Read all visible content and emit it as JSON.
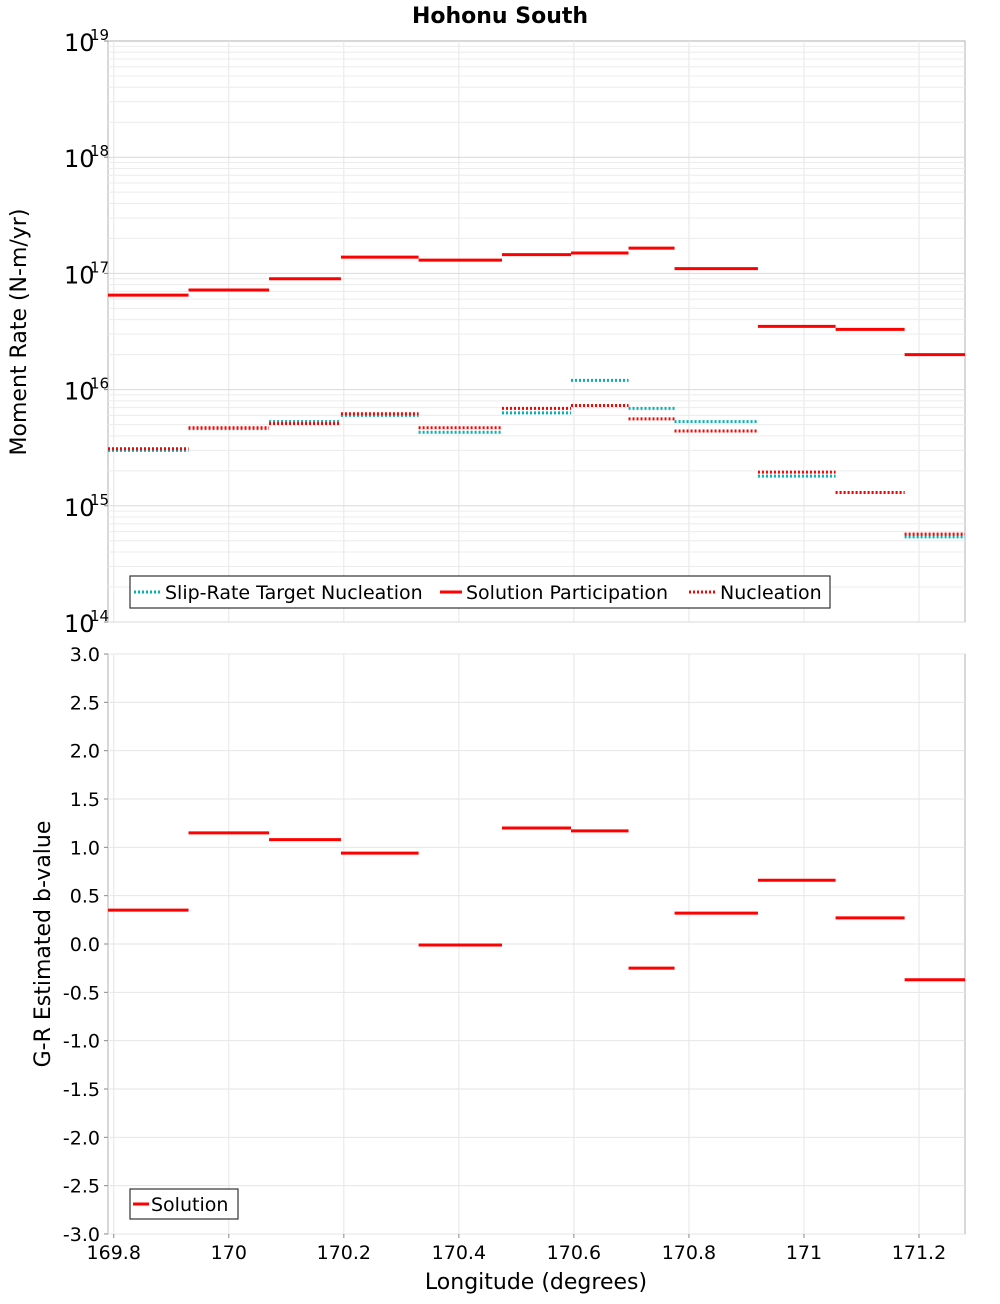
{
  "chart_data": [
    {
      "type": "line",
      "title": "Hohonu South",
      "xlabel": "Longitude (degrees)",
      "ylabel": "Moment Rate (N-m/yr)",
      "yscale": "log",
      "xlim": [
        169.79,
        171.28
      ],
      "ylim": [
        100000000000000.0,
        1e+19
      ],
      "grid": true,
      "legend_position": "bottom-left",
      "y_ticks": [
        {
          "value": 100000000000000.0,
          "base": "10",
          "exp": "14"
        },
        {
          "value": 1000000000000000.0,
          "base": "10",
          "exp": "15"
        },
        {
          "value": 1e+16,
          "base": "10",
          "exp": "16"
        },
        {
          "value": 1e+17,
          "base": "10",
          "exp": "17"
        },
        {
          "value": 1e+18,
          "base": "10",
          "exp": "18"
        },
        {
          "value": 1e+19,
          "base": "10",
          "exp": "19"
        }
      ],
      "series": [
        {
          "name": "Slip-Rate Target Nucleation",
          "color": "#00b4b4",
          "style": "dotted",
          "segments": [
            [
              169.79,
              169.93,
              3000000000000000.0
            ],
            [
              169.93,
              170.07,
              4600000000000000.0
            ],
            [
              170.07,
              170.195,
              5300000000000000.0
            ],
            [
              170.195,
              170.33,
              6000000000000000.0
            ],
            [
              170.33,
              170.475,
              4300000000000000.0
            ],
            [
              170.475,
              170.595,
              6300000000000000.0
            ],
            [
              170.595,
              170.695,
              1.2e+16
            ],
            [
              170.695,
              170.775,
              6900000000000000.0
            ],
            [
              170.775,
              170.92,
              5300000000000000.0
            ],
            [
              170.92,
              171.055,
              1800000000000000.0
            ],
            [
              171.055,
              171.175,
              1300000000000000.0
            ],
            [
              171.175,
              171.28,
              540000000000000.0
            ]
          ]
        },
        {
          "name": "Solution Participation",
          "color": "#ff0000",
          "style": "solid",
          "segments": [
            [
              169.79,
              169.93,
              6.5e+16
            ],
            [
              169.93,
              170.07,
              7.2e+16
            ],
            [
              170.07,
              170.195,
              9e+16
            ],
            [
              170.195,
              170.33,
              1.38e+17
            ],
            [
              170.33,
              170.475,
              1.3e+17
            ],
            [
              170.475,
              170.595,
              1.45e+17
            ],
            [
              170.595,
              170.695,
              1.5e+17
            ],
            [
              170.695,
              170.775,
              1.65e+17
            ],
            [
              170.775,
              170.92,
              1.1e+17
            ],
            [
              170.92,
              171.055,
              3.5e+16
            ],
            [
              171.055,
              171.175,
              3.3e+16
            ],
            [
              171.175,
              171.28,
              2e+16
            ]
          ]
        },
        {
          "name": "Nucleation",
          "color": "#ff0000",
          "style": "dotted",
          "segments": [
            [
              169.79,
              169.93,
              3100000000000000.0
            ],
            [
              169.93,
              170.07,
              4700000000000000.0
            ],
            [
              170.07,
              170.195,
              5100000000000000.0
            ],
            [
              170.195,
              170.33,
              6200000000000000.0
            ],
            [
              170.33,
              170.475,
              4700000000000000.0
            ],
            [
              170.475,
              170.595,
              6900000000000000.0
            ],
            [
              170.595,
              170.695,
              7300000000000000.0
            ],
            [
              170.695,
              170.775,
              5600000000000000.0
            ],
            [
              170.775,
              170.92,
              4400000000000000.0
            ],
            [
              170.92,
              171.055,
              1950000000000000.0
            ],
            [
              171.055,
              171.175,
              1300000000000000.0
            ],
            [
              171.175,
              171.28,
              570000000000000.0
            ]
          ]
        }
      ]
    },
    {
      "type": "line",
      "xlabel": "Longitude (degrees)",
      "ylabel": "G-R Estimated b-value",
      "xlim": [
        169.79,
        171.28
      ],
      "ylim": [
        -3.0,
        3.0
      ],
      "grid": true,
      "legend_position": "bottom-left",
      "x_ticks": [
        "169.8",
        "170",
        "170.2",
        "170.4",
        "170.6",
        "170.8",
        "171",
        "171.2"
      ],
      "x_tick_values": [
        169.8,
        170.0,
        170.2,
        170.4,
        170.6,
        170.8,
        171.0,
        171.2
      ],
      "y_ticks": [
        "3.0",
        "2.5",
        "2.0",
        "1.5",
        "1.0",
        "0.5",
        "0.0",
        "-0.5",
        "-1.0",
        "-1.5",
        "-2.0",
        "-2.5",
        "-3.0"
      ],
      "y_tick_values": [
        3.0,
        2.5,
        2.0,
        1.5,
        1.0,
        0.5,
        0.0,
        -0.5,
        -1.0,
        -1.5,
        -2.0,
        -2.5,
        -3.0
      ],
      "series": [
        {
          "name": "Solution",
          "color": "#ff0000",
          "style": "solid",
          "segments": [
            [
              169.79,
              169.93,
              0.35
            ],
            [
              169.93,
              170.07,
              1.15
            ],
            [
              170.07,
              170.195,
              1.08
            ],
            [
              170.195,
              170.33,
              0.94
            ],
            [
              170.33,
              170.475,
              -0.01
            ],
            [
              170.475,
              170.595,
              1.2
            ],
            [
              170.595,
              170.695,
              1.17
            ],
            [
              170.695,
              170.775,
              -0.25
            ],
            [
              170.775,
              170.92,
              0.32
            ],
            [
              170.92,
              171.055,
              0.66
            ],
            [
              171.055,
              171.175,
              0.27
            ],
            [
              171.175,
              171.28,
              -0.37
            ]
          ]
        }
      ]
    }
  ]
}
